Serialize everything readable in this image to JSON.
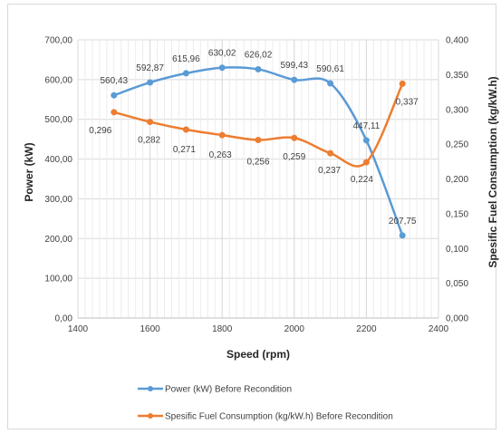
{
  "chart_data": {
    "type": "line",
    "xlabel": "Speed (rpm)",
    "ylabel": "Power (kW)",
    "y2label": "Spesific Fuel Consumption (kg/kW.h)",
    "xlim": [
      1400,
      2400
    ],
    "ylim": [
      0,
      700
    ],
    "y2lim": [
      0,
      0.4
    ],
    "x_ticks": [
      "1400",
      "1600",
      "1800",
      "2000",
      "2200",
      "2400"
    ],
    "y_ticks": [
      "0,00",
      "100,00",
      "200,00",
      "300,00",
      "400,00",
      "500,00",
      "600,00",
      "700,00"
    ],
    "y2_ticks": [
      "0,000",
      "0,050",
      "0,100",
      "0,150",
      "0,200",
      "0,250",
      "0,300",
      "0,350",
      "0,400"
    ],
    "grid": true,
    "legend_position": "bottom",
    "series": [
      {
        "name": "Power (kW) Before Recondition",
        "axis": "left",
        "color": "#5b9bd5",
        "x": [
          1500,
          1600,
          1700,
          1800,
          1900,
          2000,
          2100,
          2200,
          2300
        ],
        "values": [
          560.43,
          592.87,
          615.96,
          630.02,
          626.02,
          599.43,
          590.61,
          447.11,
          207.75
        ],
        "labels": [
          "560,43",
          "592,87",
          "615,96",
          "630,02",
          "626,02",
          "599,43",
          "590,61",
          "447,11",
          "207,75"
        ]
      },
      {
        "name": "Spesific Fuel Consumption (kg/kW.h) Before Recondition",
        "axis": "right",
        "color": "#ed7d31",
        "x": [
          1500,
          1600,
          1700,
          1800,
          1900,
          2000,
          2100,
          2200,
          2300
        ],
        "values": [
          0.296,
          0.282,
          0.271,
          0.263,
          0.256,
          0.259,
          0.237,
          0.224,
          0.337
        ],
        "labels": [
          "0,296",
          "0,282",
          "0,271",
          "0,263",
          "0,256",
          "0,259",
          "0,237",
          "0,224",
          "0,337"
        ]
      }
    ]
  }
}
